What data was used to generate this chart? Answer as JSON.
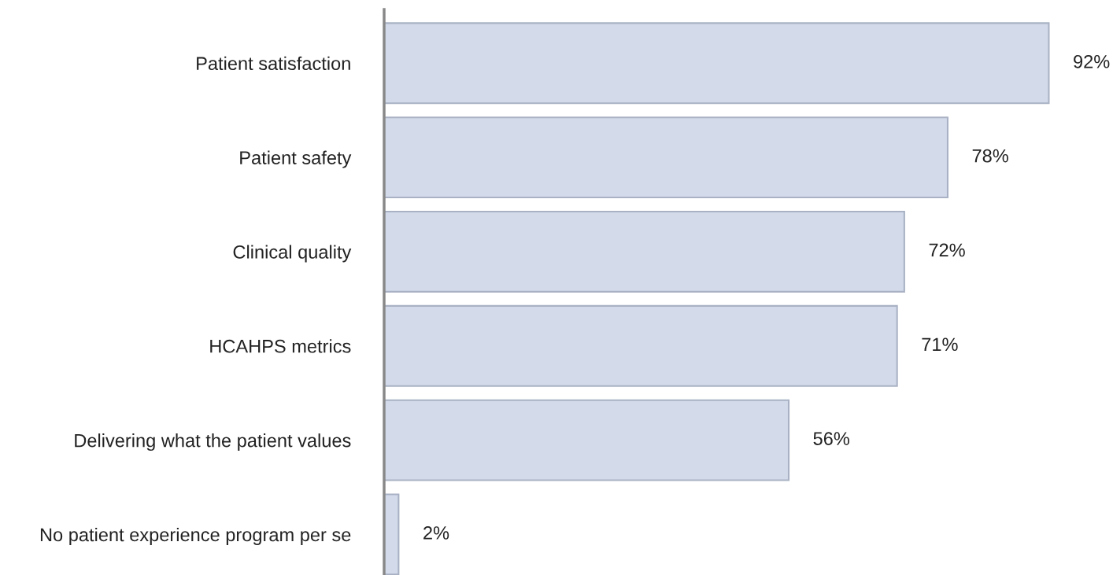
{
  "chart_data": {
    "type": "bar",
    "orientation": "horizontal",
    "categories": [
      "Patient satisfaction",
      "Patient safety",
      "Clinical quality",
      "HCAHPS metrics",
      "Delivering what the patient values",
      "No patient experience program per se"
    ],
    "values": [
      92,
      78,
      72,
      71,
      56,
      2
    ],
    "value_labels": [
      "92%",
      "78%",
      "72%",
      "71%",
      "56%",
      "2%"
    ],
    "color": "#d3dbeb",
    "grid": false,
    "legend": false,
    "tick_labels": "y"
  }
}
